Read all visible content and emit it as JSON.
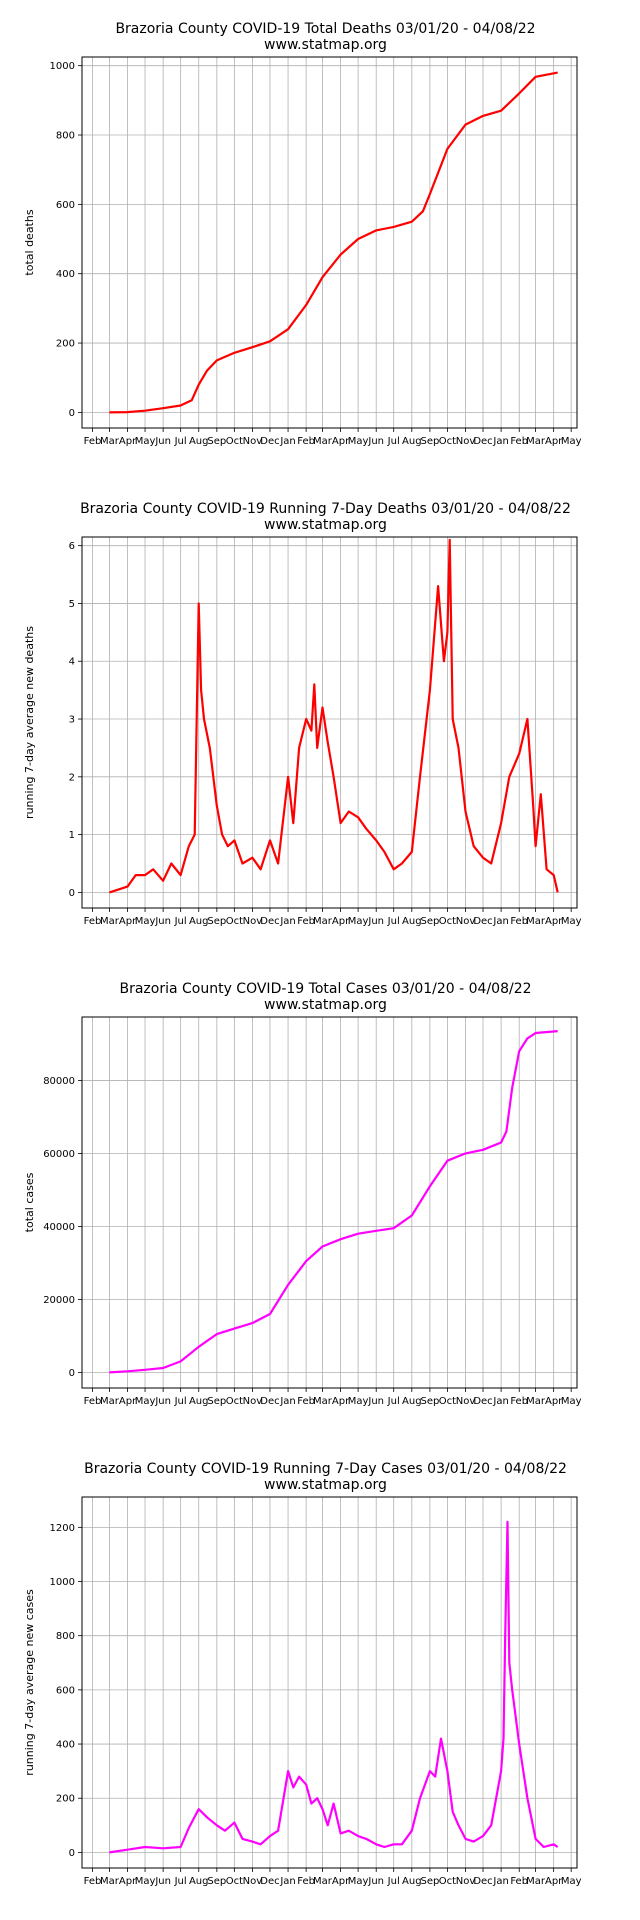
{
  "chart_data": [
    {
      "type": "line",
      "title": "Brazoria County COVID-19 Total Deaths 03/01/20 - 04/08/22",
      "subtitle": "www.statmap.org",
      "xlabel": "",
      "ylabel": "total deaths",
      "color": "#ff0000",
      "grid": true,
      "ylim": [
        0,
        1000
      ],
      "yticks": [
        0,
        200,
        400,
        600,
        800,
        1000
      ],
      "xticks": [
        "Feb",
        "Mar",
        "Apr",
        "May",
        "Jun",
        "Jul",
        "Aug",
        "Sep",
        "Oct",
        "Nov",
        "Dec",
        "Jan",
        "Feb",
        "Mar",
        "Apr",
        "May",
        "Jun",
        "Jul",
        "Aug",
        "Sep",
        "Oct",
        "Nov",
        "Dec",
        "Jan",
        "Feb",
        "Mar",
        "Apr",
        "May"
      ],
      "series": [
        {
          "x": [
            "2020-03-01",
            "2020-04-01",
            "2020-05-01",
            "2020-06-01",
            "2020-07-01",
            "2020-07-20",
            "2020-08-01",
            "2020-08-15",
            "2020-09-01",
            "2020-10-01",
            "2020-11-01",
            "2020-12-01",
            "2021-01-01",
            "2021-02-01",
            "2021-03-01",
            "2021-04-01",
            "2021-05-01",
            "2021-06-01",
            "2021-07-01",
            "2021-08-01",
            "2021-08-20",
            "2021-09-01",
            "2021-10-01",
            "2021-11-01",
            "2021-12-01",
            "2022-01-01",
            "2022-02-01",
            "2022-03-01",
            "2022-04-08"
          ],
          "values": [
            0,
            1,
            5,
            12,
            20,
            35,
            80,
            120,
            150,
            172,
            188,
            205,
            240,
            310,
            390,
            455,
            500,
            525,
            535,
            550,
            580,
            630,
            760,
            830,
            855,
            870,
            920,
            968,
            980
          ]
        }
      ]
    },
    {
      "type": "line",
      "title": "Brazoria County COVID-19 Running 7-Day Deaths 03/01/20 - 04/08/22",
      "subtitle": "www.statmap.org",
      "xlabel": "",
      "ylabel": "running 7-day average new deaths",
      "color": "#ff0000",
      "grid": true,
      "ylim": [
        0,
        6
      ],
      "yticks": [
        0,
        1,
        2,
        3,
        4,
        5,
        6
      ],
      "xticks": [
        "Feb",
        "Mar",
        "Apr",
        "May",
        "Jun",
        "Jul",
        "Aug",
        "Sep",
        "Oct",
        "Nov",
        "Dec",
        "Jan",
        "Feb",
        "Mar",
        "Apr",
        "May",
        "Jun",
        "Jul",
        "Aug",
        "Sep",
        "Oct",
        "Nov",
        "Dec",
        "Jan",
        "Feb",
        "Mar",
        "Apr",
        "May"
      ],
      "series": [
        {
          "x": [
            "2020-03-01",
            "2020-04-01",
            "2020-04-15",
            "2020-05-01",
            "2020-05-15",
            "2020-06-01",
            "2020-06-15",
            "2020-07-01",
            "2020-07-15",
            "2020-07-25",
            "2020-08-01",
            "2020-08-05",
            "2020-08-10",
            "2020-08-20",
            "2020-09-01",
            "2020-09-10",
            "2020-09-20",
            "2020-10-01",
            "2020-10-15",
            "2020-11-01",
            "2020-11-15",
            "2020-12-01",
            "2020-12-15",
            "2021-01-01",
            "2021-01-10",
            "2021-01-20",
            "2021-02-01",
            "2021-02-10",
            "2021-02-15",
            "2021-02-20",
            "2021-03-01",
            "2021-03-10",
            "2021-03-20",
            "2021-04-01",
            "2021-04-15",
            "2021-05-01",
            "2021-05-15",
            "2021-06-01",
            "2021-06-15",
            "2021-07-01",
            "2021-07-15",
            "2021-08-01",
            "2021-08-15",
            "2021-09-01",
            "2021-09-05",
            "2021-09-15",
            "2021-09-25",
            "2021-10-01",
            "2021-10-05",
            "2021-10-10",
            "2021-10-20",
            "2021-11-01",
            "2021-11-15",
            "2021-12-01",
            "2021-12-15",
            "2022-01-01",
            "2022-01-15",
            "2022-02-01",
            "2022-02-15",
            "2022-02-25",
            "2022-03-01",
            "2022-03-10",
            "2022-03-20",
            "2022-04-01",
            "2022-04-08"
          ],
          "values": [
            0,
            0.1,
            0.3,
            0.3,
            0.4,
            0.2,
            0.5,
            0.3,
            0.8,
            1.0,
            5.0,
            3.5,
            3.0,
            2.5,
            1.5,
            1.0,
            0.8,
            0.9,
            0.5,
            0.6,
            0.4,
            0.9,
            0.5,
            2.0,
            1.2,
            2.5,
            3.0,
            2.8,
            3.6,
            2.5,
            3.2,
            2.6,
            2.0,
            1.2,
            1.4,
            1.3,
            1.1,
            0.9,
            0.7,
            0.4,
            0.5,
            0.7,
            2.0,
            3.5,
            4.0,
            5.3,
            4.0,
            4.5,
            6.1,
            3.0,
            2.5,
            1.4,
            0.8,
            0.6,
            0.5,
            1.2,
            2.0,
            2.4,
            3.0,
            1.5,
            0.8,
            1.7,
            0.4,
            0.3,
            0.0
          ]
        }
      ]
    },
    {
      "type": "line",
      "title": "Brazoria County COVID-19 Total Cases 03/01/20 - 04/08/22",
      "subtitle": "www.statmap.org",
      "xlabel": "",
      "ylabel": "total cases",
      "color": "#ff00ff",
      "grid": true,
      "ylim": [
        0,
        95000
      ],
      "yticks": [
        0,
        20000,
        40000,
        60000,
        80000
      ],
      "xticks": [
        "Feb",
        "Mar",
        "Apr",
        "May",
        "Jun",
        "Jul",
        "Aug",
        "Sep",
        "Oct",
        "Nov",
        "Dec",
        "Jan",
        "Feb",
        "Mar",
        "Apr",
        "May",
        "Jun",
        "Jul",
        "Aug",
        "Sep",
        "Oct",
        "Nov",
        "Dec",
        "Jan",
        "Feb",
        "Mar",
        "Apr",
        "May"
      ],
      "series": [
        {
          "x": [
            "2020-03-01",
            "2020-04-01",
            "2020-05-01",
            "2020-06-01",
            "2020-07-01",
            "2020-08-01",
            "2020-09-01",
            "2020-10-01",
            "2020-11-01",
            "2020-12-01",
            "2021-01-01",
            "2021-02-01",
            "2021-03-01",
            "2021-04-01",
            "2021-05-01",
            "2021-06-01",
            "2021-07-01",
            "2021-08-01",
            "2021-09-01",
            "2021-10-01",
            "2021-11-01",
            "2021-12-01",
            "2022-01-01",
            "2022-01-10",
            "2022-01-20",
            "2022-02-01",
            "2022-02-15",
            "2022-03-01",
            "2022-04-08"
          ],
          "values": [
            0,
            300,
            700,
            1200,
            3000,
            7000,
            10500,
            12000,
            13500,
            16000,
            24000,
            30500,
            34500,
            36500,
            38000,
            38800,
            39500,
            43000,
            51000,
            58000,
            60000,
            61000,
            63000,
            66000,
            78000,
            88000,
            91500,
            93000,
            93500
          ]
        }
      ]
    },
    {
      "type": "line",
      "title": "Brazoria County COVID-19 Running 7-Day Cases 03/01/20 - 04/08/22",
      "subtitle": "www.statmap.org",
      "xlabel": "",
      "ylabel": "running 7-day average new cases",
      "color": "#ff00ff",
      "grid": true,
      "ylim": [
        0,
        1280
      ],
      "yticks": [
        0,
        200,
        400,
        600,
        800,
        1000,
        1200
      ],
      "xticks": [
        "Feb",
        "Mar",
        "Apr",
        "May",
        "Jun",
        "Jul",
        "Aug",
        "Sep",
        "Oct",
        "Nov",
        "Dec",
        "Jan",
        "Feb",
        "Mar",
        "Apr",
        "May",
        "Jun",
        "Jul",
        "Aug",
        "Sep",
        "Oct",
        "Nov",
        "Dec",
        "Jan",
        "Feb",
        "Mar",
        "Apr",
        "May"
      ],
      "series": [
        {
          "x": [
            "2020-03-01",
            "2020-04-01",
            "2020-05-01",
            "2020-06-01",
            "2020-07-01",
            "2020-07-15",
            "2020-08-01",
            "2020-08-15",
            "2020-09-01",
            "2020-09-15",
            "2020-10-01",
            "2020-10-15",
            "2020-11-01",
            "2020-11-15",
            "2020-12-01",
            "2020-12-15",
            "2021-01-01",
            "2021-01-10",
            "2021-01-20",
            "2021-02-01",
            "2021-02-10",
            "2021-02-20",
            "2021-03-01",
            "2021-03-10",
            "2021-03-20",
            "2021-04-01",
            "2021-04-15",
            "2021-05-01",
            "2021-05-15",
            "2021-06-01",
            "2021-06-15",
            "2021-07-01",
            "2021-07-15",
            "2021-08-01",
            "2021-08-15",
            "2021-09-01",
            "2021-09-10",
            "2021-09-20",
            "2021-10-01",
            "2021-10-10",
            "2021-10-20",
            "2021-11-01",
            "2021-11-15",
            "2021-12-01",
            "2021-12-15",
            "2022-01-01",
            "2022-01-05",
            "2022-01-08",
            "2022-01-12",
            "2022-01-15",
            "2022-01-20",
            "2022-02-01",
            "2022-02-15",
            "2022-03-01",
            "2022-03-15",
            "2022-04-01",
            "2022-04-08"
          ],
          "values": [
            0,
            10,
            20,
            15,
            20,
            90,
            160,
            130,
            100,
            80,
            110,
            50,
            40,
            30,
            60,
            80,
            300,
            240,
            280,
            250,
            180,
            200,
            160,
            100,
            180,
            70,
            80,
            60,
            50,
            30,
            20,
            30,
            30,
            80,
            200,
            300,
            280,
            420,
            300,
            150,
            100,
            50,
            40,
            60,
            100,
            300,
            420,
            800,
            1220,
            700,
            600,
            400,
            200,
            50,
            20,
            30,
            20
          ]
        }
      ]
    }
  ]
}
